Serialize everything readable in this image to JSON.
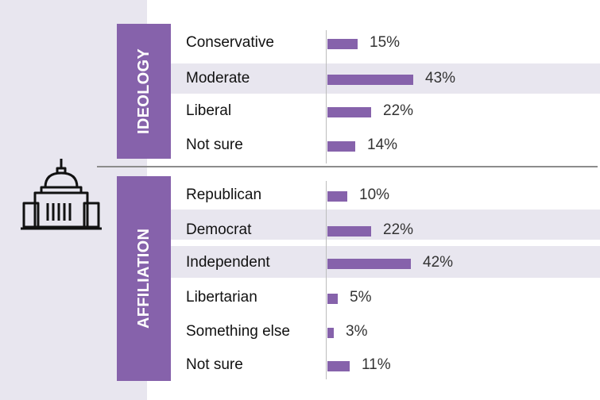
{
  "colors": {
    "bar": "#8662ab",
    "tab": "#8662ab",
    "band": "#e8e6ef",
    "panel": "#e8e6ef"
  },
  "icons": {
    "left": "capitol-building-icon"
  },
  "chart_data": {
    "type": "bar",
    "orientation": "horizontal",
    "value_format": "percent",
    "groups": [
      {
        "name": "IDEOLOGY",
        "categories": [
          "Conservative",
          "Moderate",
          "Liberal",
          "Not sure"
        ],
        "values": [
          15,
          43,
          22,
          14
        ],
        "labels": [
          "15%",
          "43%",
          "22%",
          "14%"
        ]
      },
      {
        "name": "AFFILIATION",
        "categories": [
          "Republican",
          "Democrat",
          "Independent",
          "Libertarian",
          "Something else",
          "Not sure"
        ],
        "values": [
          10,
          22,
          42,
          5,
          3,
          11
        ],
        "labels": [
          "10%",
          "22%",
          "42%",
          "5%",
          "3%",
          "11%"
        ]
      }
    ]
  }
}
